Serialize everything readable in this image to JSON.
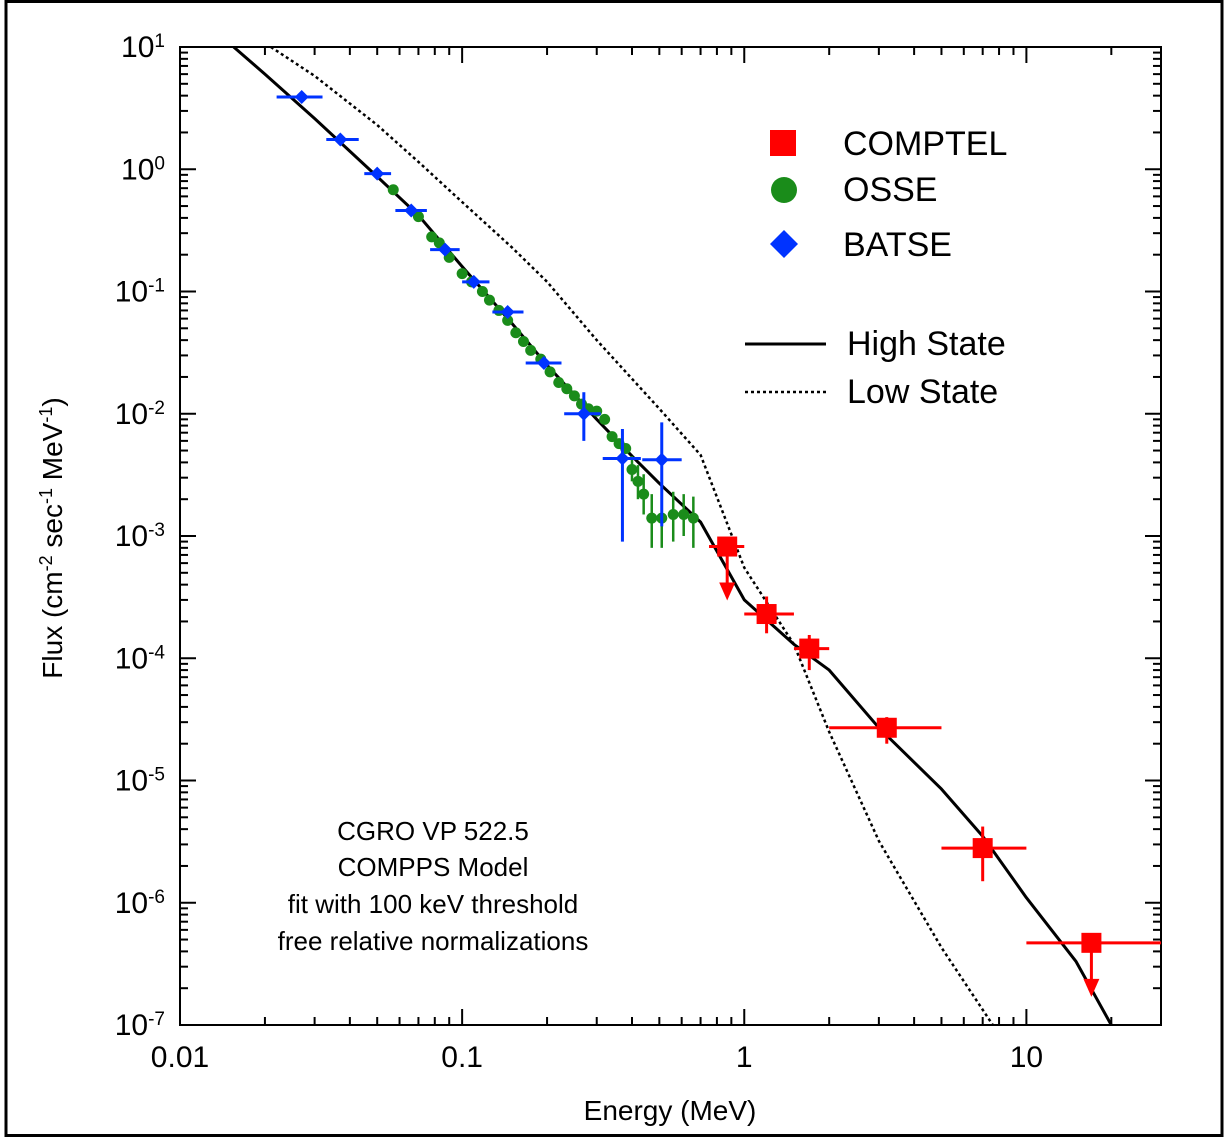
{
  "chart_data": {
    "type": "scatter",
    "xlabel": "Energy (MeV)",
    "ylabel": {
      "base": "Flux (cm",
      "exp1": "-2",
      "mid1": " sec",
      "exp2": "-1",
      "mid2": " MeV",
      "exp3": "-1",
      "end": ")"
    },
    "x_scale": "log",
    "y_scale": "log",
    "xlim": [
      0.01,
      30
    ],
    "ylim": [
      1e-07,
      10
    ],
    "x_ticks": [
      {
        "value": 0.01,
        "label": "0.01"
      },
      {
        "value": 0.1,
        "label": "0.1"
      },
      {
        "value": 1,
        "label": "1"
      },
      {
        "value": 10,
        "label": "10"
      }
    ],
    "y_ticks": [
      {
        "value": 10,
        "base": "10",
        "exp": "1"
      },
      {
        "value": 1,
        "base": "10",
        "exp": "0"
      },
      {
        "value": 0.1,
        "base": "10",
        "exp": "-1"
      },
      {
        "value": 0.01,
        "base": "10",
        "exp": "-2"
      },
      {
        "value": 0.001,
        "base": "10",
        "exp": "-3"
      },
      {
        "value": 0.0001,
        "base": "10",
        "exp": "-4"
      },
      {
        "value": 1e-05,
        "base": "10",
        "exp": "-5"
      },
      {
        "value": 1e-06,
        "base": "10",
        "exp": "-6"
      },
      {
        "value": 1e-07,
        "base": "10",
        "exp": "-7"
      }
    ],
    "legend_position": "top-right",
    "legend": [
      {
        "name": "COMPTEL",
        "marker": "square",
        "color": "#ff0000"
      },
      {
        "name": "OSSE",
        "marker": "circle",
        "color": "#1a8c1a"
      },
      {
        "name": "BATSE",
        "marker": "diamond",
        "color": "#0033ff"
      },
      {
        "name": "High State",
        "line": "solid",
        "color": "#000000"
      },
      {
        "name": "Low State",
        "line": "dotted",
        "color": "#000000"
      }
    ],
    "annotation": [
      "CGRO VP 522.5",
      "COMPPS Model",
      "fit with 100 keV threshold",
      "free relative normalizations"
    ],
    "series": [
      {
        "name": "BATSE",
        "marker": "diamond",
        "color": "#0033ff",
        "points": [
          {
            "x": 0.027,
            "y": 3.9,
            "xlo": 0.022,
            "xhi": 0.032
          },
          {
            "x": 0.037,
            "y": 1.75,
            "xlo": 0.033,
            "xhi": 0.043
          },
          {
            "x": 0.05,
            "y": 0.92,
            "xlo": 0.045,
            "xhi": 0.056
          },
          {
            "x": 0.066,
            "y": 0.46,
            "xlo": 0.058,
            "xhi": 0.075
          },
          {
            "x": 0.087,
            "y": 0.22,
            "xlo": 0.077,
            "xhi": 0.098
          },
          {
            "x": 0.11,
            "y": 0.12,
            "xlo": 0.1,
            "xhi": 0.125
          },
          {
            "x": 0.145,
            "y": 0.068,
            "xlo": 0.128,
            "xhi": 0.165
          },
          {
            "x": 0.195,
            "y": 0.026,
            "xlo": 0.168,
            "xhi": 0.225
          },
          {
            "x": 0.27,
            "y": 0.01,
            "xlo": 0.23,
            "xhi": 0.31,
            "ylo": 0.006,
            "yhi": 0.015
          },
          {
            "x": 0.37,
            "y": 0.0043,
            "xlo": 0.315,
            "xhi": 0.43,
            "ylo": 0.0009,
            "yhi": 0.0075
          },
          {
            "x": 0.51,
            "y": 0.0042,
            "xlo": 0.435,
            "xhi": 0.6,
            "ylo": 0.0012,
            "yhi": 0.0085
          }
        ]
      },
      {
        "name": "OSSE",
        "marker": "circle",
        "color": "#1a8c1a",
        "points": [
          {
            "x": 0.057,
            "y": 0.68
          },
          {
            "x": 0.07,
            "y": 0.41
          },
          {
            "x": 0.078,
            "y": 0.28
          },
          {
            "x": 0.083,
            "y": 0.25
          },
          {
            "x": 0.09,
            "y": 0.19
          },
          {
            "x": 0.1,
            "y": 0.14
          },
          {
            "x": 0.108,
            "y": 0.12
          },
          {
            "x": 0.118,
            "y": 0.1
          },
          {
            "x": 0.125,
            "y": 0.085
          },
          {
            "x": 0.135,
            "y": 0.07
          },
          {
            "x": 0.145,
            "y": 0.058
          },
          {
            "x": 0.155,
            "y": 0.046
          },
          {
            "x": 0.165,
            "y": 0.039
          },
          {
            "x": 0.175,
            "y": 0.033
          },
          {
            "x": 0.19,
            "y": 0.028
          },
          {
            "x": 0.205,
            "y": 0.022
          },
          {
            "x": 0.22,
            "y": 0.018
          },
          {
            "x": 0.235,
            "y": 0.016
          },
          {
            "x": 0.25,
            "y": 0.014
          },
          {
            "x": 0.265,
            "y": 0.012
          },
          {
            "x": 0.28,
            "y": 0.011
          },
          {
            "x": 0.3,
            "y": 0.0105
          },
          {
            "x": 0.32,
            "y": 0.009
          },
          {
            "x": 0.34,
            "y": 0.0065
          },
          {
            "x": 0.36,
            "y": 0.0057
          },
          {
            "x": 0.38,
            "y": 0.0052
          },
          {
            "x": 0.4,
            "y": 0.0035,
            "ylo": 0.0028,
            "yhi": 0.0045
          },
          {
            "x": 0.42,
            "y": 0.0028,
            "ylo": 0.002,
            "yhi": 0.0038
          },
          {
            "x": 0.44,
            "y": 0.0022,
            "ylo": 0.0015,
            "yhi": 0.0032
          },
          {
            "x": 0.47,
            "y": 0.0014,
            "ylo": 0.0008,
            "yhi": 0.0022
          },
          {
            "x": 0.51,
            "y": 0.0014,
            "ylo": 0.0008,
            "yhi": 0.0022
          },
          {
            "x": 0.56,
            "y": 0.0015,
            "ylo": 0.0009,
            "yhi": 0.0023
          },
          {
            "x": 0.61,
            "y": 0.0015,
            "ylo": 0.001,
            "yhi": 0.0022
          },
          {
            "x": 0.66,
            "y": 0.0014,
            "ylo": 0.0008,
            "yhi": 0.0021
          }
        ]
      },
      {
        "name": "COMPTEL",
        "marker": "square",
        "color": "#ff0000",
        "points": [
          {
            "x": 0.87,
            "y": 0.00082,
            "xlo": 0.75,
            "xhi": 1.0,
            "upper_limit": true
          },
          {
            "x": 1.2,
            "y": 0.00023,
            "xlo": 1.0,
            "xhi": 1.5,
            "ylo": 0.00016,
            "yhi": 0.00032
          },
          {
            "x": 1.7,
            "y": 0.00012,
            "xlo": 1.5,
            "xhi": 2.0,
            "ylo": 8e-05,
            "yhi": 0.000155
          },
          {
            "x": 3.2,
            "y": 2.7e-05,
            "xlo": 2.0,
            "xhi": 5.0,
            "ylo": 2e-05,
            "yhi": 3.3e-05
          },
          {
            "x": 7.0,
            "y": 2.8e-06,
            "xlo": 5.0,
            "xhi": 10.0,
            "ylo": 1.5e-06,
            "yhi": 4.2e-06
          },
          {
            "x": 17.0,
            "y": 4.7e-07,
            "xlo": 10.0,
            "xhi": 30.0,
            "upper_limit": true
          }
        ]
      }
    ],
    "curves": [
      {
        "name": "High State",
        "style": "solid",
        "points": [
          [
            0.0155,
            10
          ],
          [
            0.02,
            6.0
          ],
          [
            0.03,
            2.6
          ],
          [
            0.05,
            0.87
          ],
          [
            0.07,
            0.42
          ],
          [
            0.1,
            0.16
          ],
          [
            0.15,
            0.055
          ],
          [
            0.2,
            0.025
          ],
          [
            0.3,
            0.009
          ],
          [
            0.4,
            0.0045
          ],
          [
            0.5,
            0.0027
          ],
          [
            0.7,
            0.0013
          ],
          [
            1.0,
            0.0003
          ],
          [
            1.5,
            0.00013
          ],
          [
            2.0,
            8e-05
          ],
          [
            3.0,
            2.7e-05
          ],
          [
            5.0,
            8.5e-06
          ],
          [
            7.0,
            3.5e-06
          ],
          [
            10.0,
            1.1e-06
          ],
          [
            15.0,
            3.3e-07
          ],
          [
            20.0,
            1e-07
          ]
        ]
      },
      {
        "name": "Low State",
        "style": "dotted",
        "points": [
          [
            0.021,
            10
          ],
          [
            0.03,
            5.8
          ],
          [
            0.05,
            2.3
          ],
          [
            0.07,
            1.15
          ],
          [
            0.1,
            0.54
          ],
          [
            0.15,
            0.23
          ],
          [
            0.2,
            0.12
          ],
          [
            0.3,
            0.04
          ],
          [
            0.5,
            0.011
          ],
          [
            0.7,
            0.0046
          ],
          [
            1.0,
            0.00055
          ],
          [
            1.5,
            0.00013
          ],
          [
            2.0,
            2.5e-05
          ],
          [
            3.0,
            3.2e-06
          ],
          [
            5.0,
            4.3e-07
          ],
          [
            7.6,
            1e-07
          ]
        ]
      }
    ]
  }
}
